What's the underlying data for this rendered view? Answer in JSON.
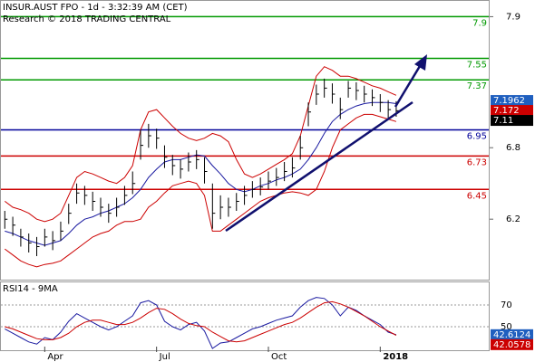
{
  "chart_data": [
    {
      "type": "ohlc",
      "title": "INSUR.AUST FPO - 1d - 3:32:39 AM (CET)",
      "subtitle": "Research © 2018 TRADING CENTRAL",
      "xlim": [
        -0.6,
        60.7
      ],
      "ylim": [
        5.7,
        8.04
      ],
      "yticks": [
        6.2,
        6.8,
        7.9
      ],
      "color": "#000000",
      "high": [
        6.27,
        6.22,
        6.12,
        6.08,
        6.05,
        6.12,
        6.1,
        6.18,
        6.33,
        6.5,
        6.48,
        6.43,
        6.38,
        6.33,
        6.38,
        6.48,
        6.6,
        6.95,
        7.0,
        6.96,
        6.82,
        6.74,
        6.7,
        6.76,
        6.78,
        6.72,
        6.5,
        6.4,
        6.38,
        6.42,
        6.48,
        6.52,
        6.55,
        6.6,
        6.63,
        6.68,
        6.72,
        6.9,
        7.18,
        7.33,
        7.38,
        7.34,
        7.22,
        7.36,
        7.35,
        7.32,
        7.29,
        7.25,
        7.2,
        7.19
      ],
      "low": [
        6.12,
        6.06,
        5.97,
        5.92,
        5.89,
        5.97,
        5.94,
        6.02,
        6.16,
        6.33,
        6.32,
        6.27,
        6.22,
        6.17,
        6.22,
        6.32,
        6.41,
        6.7,
        6.8,
        6.79,
        6.63,
        6.57,
        6.54,
        6.6,
        6.62,
        6.5,
        6.12,
        6.2,
        6.22,
        6.27,
        6.32,
        6.38,
        6.4,
        6.45,
        6.48,
        6.52,
        6.55,
        6.7,
        6.98,
        7.16,
        7.22,
        7.17,
        7.04,
        7.22,
        7.2,
        7.18,
        7.15,
        7.1,
        7.05,
        7.06
      ],
      "close": [
        6.2,
        6.15,
        6.05,
        6.0,
        5.97,
        6.05,
        6.02,
        6.1,
        6.25,
        6.42,
        6.4,
        6.35,
        6.3,
        6.25,
        6.3,
        6.4,
        6.5,
        6.82,
        6.9,
        6.88,
        6.72,
        6.65,
        6.62,
        6.68,
        6.7,
        6.6,
        6.25,
        6.3,
        6.3,
        6.35,
        6.4,
        6.45,
        6.47,
        6.52,
        6.55,
        6.6,
        6.63,
        6.8,
        7.1,
        7.25,
        7.3,
        7.25,
        7.12,
        7.3,
        7.28,
        7.25,
        7.22,
        7.18,
        7.12,
        7.11
      ],
      "overlays": [
        {
          "color": "#cc0000",
          "values": [
            6.35,
            6.3,
            6.28,
            6.25,
            6.2,
            6.18,
            6.2,
            6.25,
            6.4,
            6.55,
            6.6,
            6.58,
            6.55,
            6.52,
            6.5,
            6.55,
            6.65,
            6.95,
            7.1,
            7.12,
            7.05,
            6.98,
            6.92,
            6.88,
            6.86,
            6.88,
            6.92,
            6.9,
            6.85,
            6.7,
            6.58,
            6.55,
            6.58,
            6.62,
            6.66,
            6.7,
            6.75,
            6.9,
            7.15,
            7.4,
            7.48,
            7.45,
            7.4,
            7.4,
            7.38,
            7.35,
            7.32,
            7.3,
            7.27,
            7.24
          ]
        },
        {
          "color": "#cc0000",
          "values": [
            5.95,
            5.9,
            5.85,
            5.82,
            5.8,
            5.82,
            5.83,
            5.85,
            5.9,
            5.95,
            6.0,
            6.05,
            6.08,
            6.1,
            6.15,
            6.18,
            6.18,
            6.2,
            6.3,
            6.35,
            6.42,
            6.48,
            6.5,
            6.52,
            6.5,
            6.4,
            6.1,
            6.1,
            6.15,
            6.2,
            6.25,
            6.3,
            6.35,
            6.38,
            6.4,
            6.42,
            6.43,
            6.42,
            6.4,
            6.45,
            6.6,
            6.8,
            6.95,
            7.0,
            7.05,
            7.08,
            7.08,
            7.06,
            7.04,
            7.02
          ]
        },
        {
          "color": "#1a1aa0",
          "values": [
            6.1,
            6.08,
            6.05,
            6.02,
            6.0,
            5.98,
            6.0,
            6.02,
            6.08,
            6.15,
            6.2,
            6.22,
            6.25,
            6.27,
            6.3,
            6.33,
            6.38,
            6.45,
            6.55,
            6.62,
            6.68,
            6.7,
            6.7,
            6.72,
            6.74,
            6.73,
            6.65,
            6.58,
            6.5,
            6.45,
            6.43,
            6.45,
            6.48,
            6.5,
            6.53,
            6.55,
            6.58,
            6.62,
            6.7,
            6.8,
            6.92,
            7.02,
            7.08,
            7.12,
            7.15,
            7.17,
            7.18,
            7.18,
            7.18,
            7.17
          ]
        }
      ],
      "levels": [
        {
          "value": 7.9,
          "color": "#009900"
        },
        {
          "value": 7.55,
          "color": "#009900"
        },
        {
          "value": 7.37,
          "color": "#009900"
        },
        {
          "value": 6.95,
          "color": "#000099"
        },
        {
          "value": 6.73,
          "color": "#cc0000"
        },
        {
          "value": 6.45,
          "color": "#cc0000"
        }
      ],
      "markers": [
        {
          "value": 7.1962,
          "color": "#1f5fbf"
        },
        {
          "value": 7.172,
          "color": "#cc0000"
        },
        {
          "value": 7.11,
          "color": "#000000"
        }
      ]
    },
    {
      "type": "line",
      "title": "RSI14 - 9MA",
      "xlim": [
        -0.6,
        60.7
      ],
      "ylim": [
        28.3,
        90.8
      ],
      "yticks": [
        50,
        70
      ],
      "xticks": [
        {
          "value": 5,
          "label": "Apr"
        },
        {
          "value": 19,
          "label": "Jul"
        },
        {
          "value": 33,
          "label": "Oct"
        },
        {
          "value": 47,
          "label": "2018"
        }
      ],
      "series": [
        {
          "color": "#1a1aa0",
          "values": [
            48,
            44,
            40,
            36,
            34,
            40,
            38,
            45,
            55,
            62,
            58,
            54,
            50,
            47,
            50,
            55,
            60,
            72,
            74,
            70,
            55,
            50,
            47,
            52,
            54,
            46,
            30,
            35,
            36,
            40,
            44,
            48,
            50,
            53,
            56,
            58,
            60,
            68,
            74,
            77,
            76,
            70,
            60,
            68,
            65,
            60,
            56,
            52,
            45,
            42.6124
          ]
        },
        {
          "color": "#cc0000",
          "values": [
            50,
            48,
            45,
            42,
            39,
            38,
            38,
            40,
            44,
            50,
            54,
            56,
            56,
            54,
            52,
            52,
            54,
            58,
            63,
            67,
            66,
            62,
            57,
            53,
            51,
            50,
            45,
            41,
            37,
            36,
            37,
            40,
            43,
            46,
            49,
            52,
            54,
            58,
            63,
            68,
            72,
            73,
            71,
            68,
            64,
            60,
            55,
            50,
            46,
            42.0578
          ]
        }
      ],
      "markers": [
        {
          "value": 42.6124,
          "color": "#1f5fbf"
        },
        {
          "value": 42.0578,
          "color": "#cc0000"
        }
      ]
    }
  ]
}
